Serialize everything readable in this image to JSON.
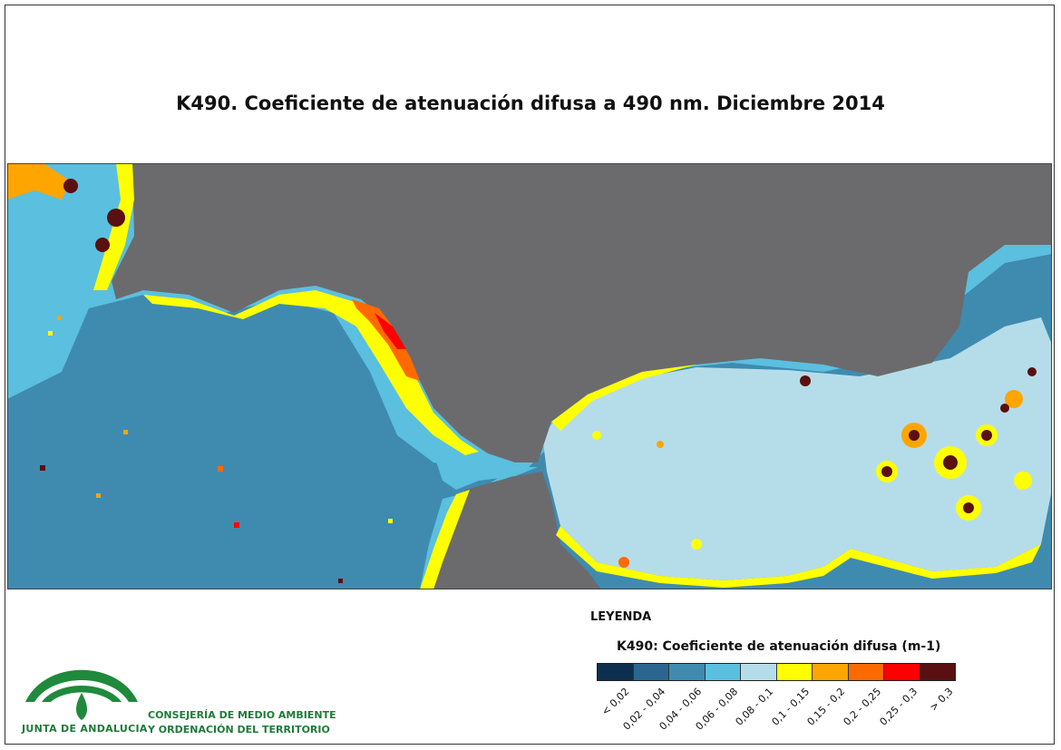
{
  "title": "K490. Coeficiente de atenuación difusa a 490 nm. Diciembre 2014",
  "legend": {
    "heading": "LEYENDA",
    "subtitle": "K490: Coeficiente de atenuación difusa (m-1)",
    "classes": [
      {
        "label": "< 0,02",
        "color": "#0d2f4f"
      },
      {
        "label": "0,02 - 0,04",
        "color": "#2a6690"
      },
      {
        "label": "0,04 - 0,06",
        "color": "#3f8bb0"
      },
      {
        "label": "0,06 - 0,08",
        "color": "#5bbfdf"
      },
      {
        "label": "0,08 - 0,1",
        "color": "#b5dde9"
      },
      {
        "label": "0,1 - 0,15",
        "color": "#ffff00"
      },
      {
        "label": "0,15 - 0,2",
        "color": "#ffa500"
      },
      {
        "label": "0,2 - 0,25",
        "color": "#ff6a00"
      },
      {
        "label": "0,25 - 0,3",
        "color": "#ff0000"
      },
      {
        "label": "> 0,3",
        "color": "#5a1010"
      }
    ]
  },
  "map": {
    "land_color": "#6b6b6d",
    "nodata_border_color": "#444444"
  },
  "organization": {
    "name": "JUNTA DE ANDALUCIA",
    "department_line1": "CONSEJERÍA DE MEDIO AMBIENTE",
    "department_line2": "Y ORDENACIÓN DEL TERRITORIO",
    "logo_color": "#1f8a3c"
  }
}
